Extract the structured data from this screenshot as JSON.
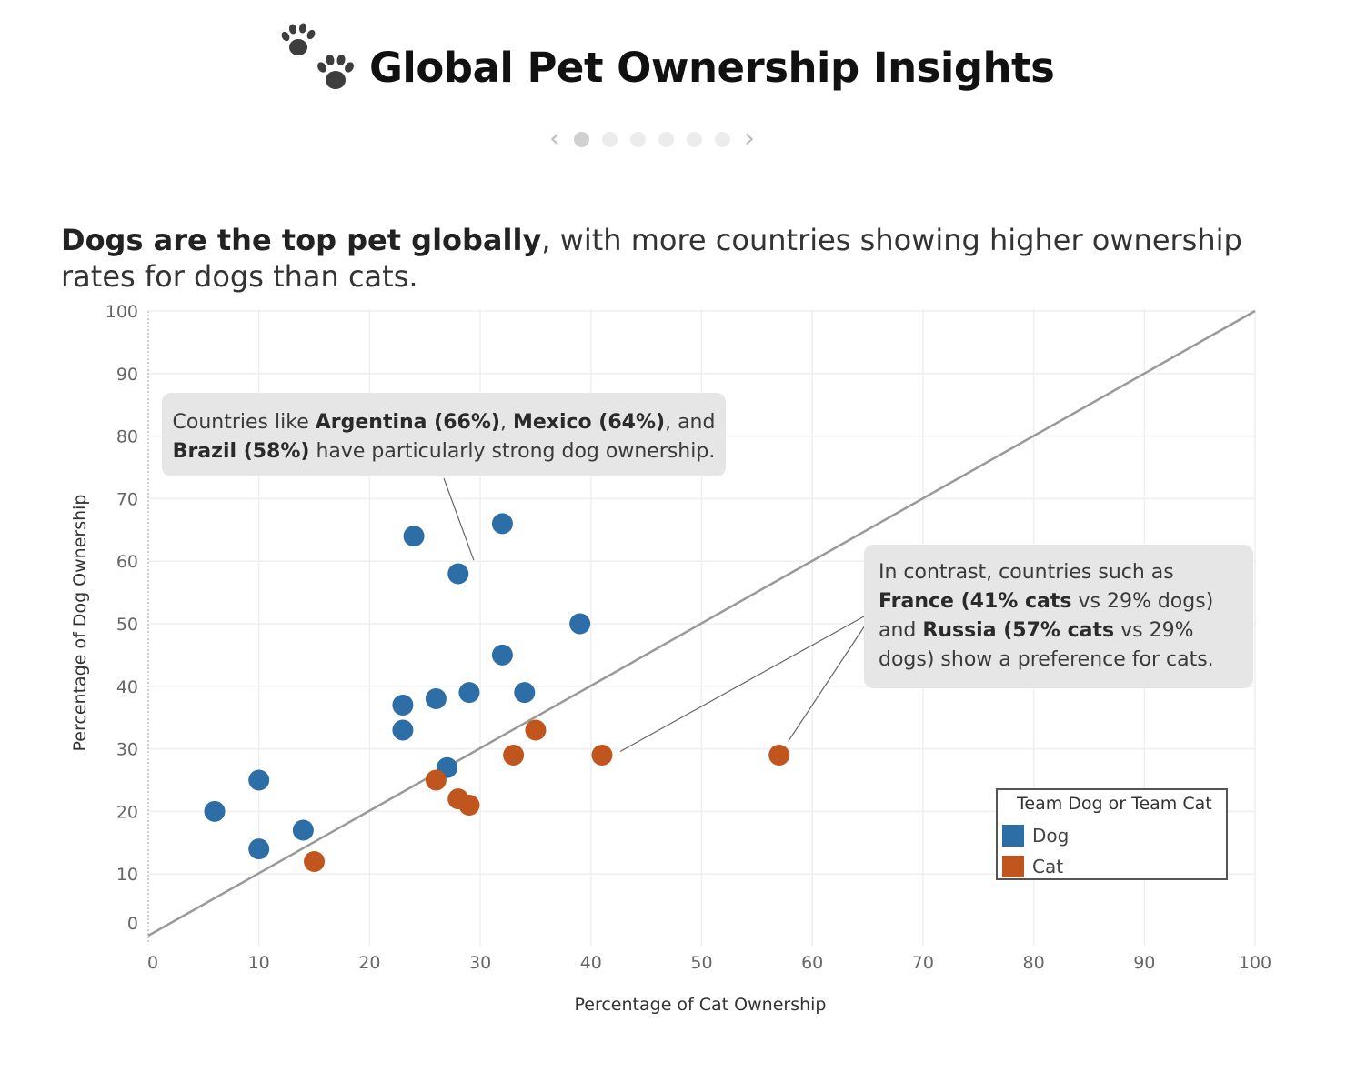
{
  "header": {
    "title": "Global Pet Ownership Insights",
    "icon": "paw-prints-icon"
  },
  "pager": {
    "prev_icon": "chevron-left-icon",
    "next_icon": "chevron-right-icon",
    "pages": 6,
    "active_index": 0
  },
  "headline": {
    "bold": "Dogs are the top pet globally",
    "rest": ", with more countries showing higher ownership rates for dogs than cats."
  },
  "annotations": [
    {
      "parts": [
        {
          "t": "Countries like ",
          "b": false
        },
        {
          "t": "Argentina (66%)",
          "b": true
        },
        {
          "t": ", ",
          "b": false
        },
        {
          "t": "Mexico (64%)",
          "b": true
        },
        {
          "t": ", and ",
          "b": false
        },
        {
          "t": "Brazil",
          "b": true
        },
        {
          "t": " (58%)",
          "b": true
        },
        {
          "t": " have particularly strong dog ownership.",
          "b": false
        }
      ]
    },
    {
      "parts": [
        {
          "t": "In contrast, countries such as ",
          "b": false
        },
        {
          "t": "France",
          "b": true
        },
        {
          "t": " (41% cats",
          "b": true
        },
        {
          "t": " vs 29% dogs) and ",
          "b": false
        },
        {
          "t": "Russia",
          "b": true
        },
        {
          "t": " (57% cats",
          "b": true
        },
        {
          "t": " vs 29% dogs) show a preference for cats.",
          "b": false
        }
      ]
    }
  ],
  "legend": {
    "title": "Team Dog or Team Cat",
    "items": [
      {
        "label": "Dog",
        "color": "#2e6ea6"
      },
      {
        "label": "Cat",
        "color": "#c0561d"
      }
    ]
  },
  "chart_data": {
    "type": "scatter",
    "xlabel": "Percentage of Cat Ownership",
    "ylabel": "Percentage of Dog Ownership",
    "xlim": [
      0,
      100
    ],
    "ylim": [
      0,
      100
    ],
    "x_ticks": [
      0,
      10,
      20,
      30,
      40,
      50,
      60,
      70,
      80,
      90,
      100
    ],
    "y_ticks": [
      0,
      10,
      20,
      30,
      40,
      50,
      60,
      70,
      80,
      90,
      100
    ],
    "grid": true,
    "reference_line": "y = x",
    "series": [
      {
        "name": "Dog",
        "color": "#2e6ea6",
        "points": [
          [
            6,
            20
          ],
          [
            10,
            25
          ],
          [
            10,
            14
          ],
          [
            14,
            17
          ],
          [
            23,
            37
          ],
          [
            23,
            33
          ],
          [
            24,
            64
          ],
          [
            26,
            38
          ],
          [
            27,
            27
          ],
          [
            28,
            58
          ],
          [
            29,
            39
          ],
          [
            32,
            66
          ],
          [
            32,
            45
          ],
          [
            34,
            39
          ],
          [
            39,
            50
          ]
        ]
      },
      {
        "name": "Cat",
        "color": "#c0561d",
        "points": [
          [
            15,
            12
          ],
          [
            26,
            25
          ],
          [
            28,
            22
          ],
          [
            29,
            21
          ],
          [
            33,
            29
          ],
          [
            35,
            33
          ],
          [
            41,
            29
          ],
          [
            57,
            29
          ]
        ]
      }
    ],
    "annotation_targets": [
      [
        29,
        60
      ],
      [
        41,
        29
      ],
      [
        57,
        29
      ]
    ]
  }
}
